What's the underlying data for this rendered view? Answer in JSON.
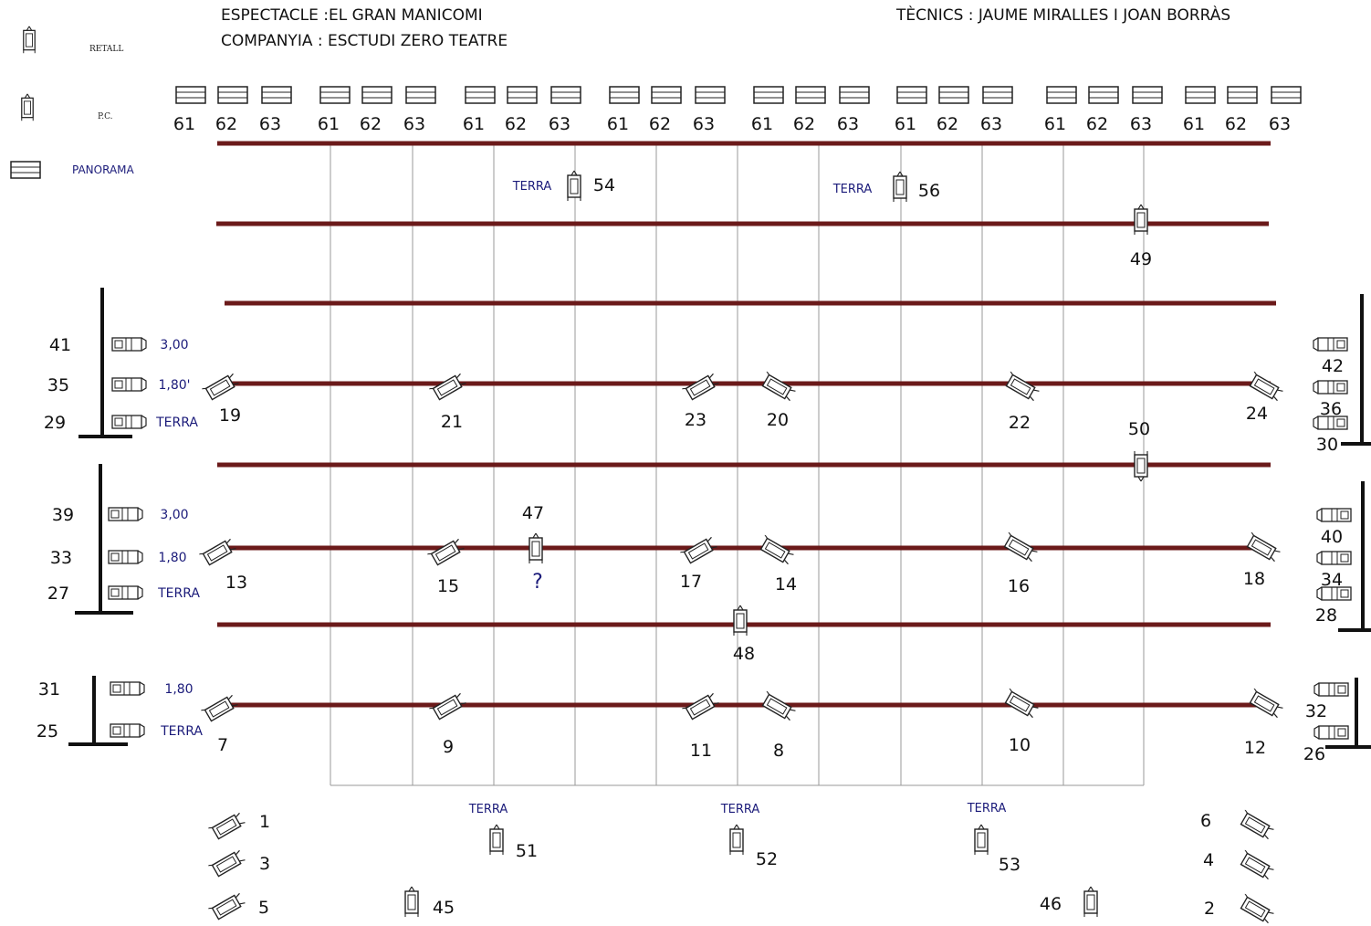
{
  "header": {
    "espectacle": "ESPECTACLE :EL GRAN MANICOMI",
    "companyia": "COMPANYIA : ESCTUDI ZERO TEATRE",
    "tecnics": "TÈCNICS : JAUME MIRALLES  I JOAN BORRÀS"
  },
  "legend": {
    "retall": "RETALL",
    "pc": "P.C.",
    "panorama": "PANORAMA"
  },
  "colors": {
    "bar": "#6b1a1a",
    "grid": "#9a9a9a",
    "ink": "#111111",
    "blue": "#1b1b7a"
  },
  "panorama_top": {
    "groups": 8,
    "labels": [
      "61",
      "62",
      "63"
    ]
  },
  "vertical_grid_count": 10,
  "bars": [
    {
      "id": "bar-1"
    },
    {
      "id": "bar-2"
    },
    {
      "id": "bar-3"
    },
    {
      "id": "bar-4"
    },
    {
      "id": "bar-5"
    },
    {
      "id": "bar-6"
    },
    {
      "id": "bar-7"
    }
  ],
  "fixtures": [
    {
      "n": "19"
    },
    {
      "n": "21"
    },
    {
      "n": "23"
    },
    {
      "n": "20"
    },
    {
      "n": "22"
    },
    {
      "n": "24"
    },
    {
      "n": "13"
    },
    {
      "n": "15"
    },
    {
      "n": "17"
    },
    {
      "n": "14"
    },
    {
      "n": "16"
    },
    {
      "n": "18"
    },
    {
      "n": "7"
    },
    {
      "n": "9"
    },
    {
      "n": "11"
    },
    {
      "n": "8"
    },
    {
      "n": "10"
    },
    {
      "n": "12"
    },
    {
      "n": "54",
      "note": "TERRA"
    },
    {
      "n": "56",
      "note": "TERRA"
    },
    {
      "n": "49"
    },
    {
      "n": "50"
    },
    {
      "n": "47",
      "note": "?"
    },
    {
      "n": "48"
    },
    {
      "n": "51",
      "note": "TERRA"
    },
    {
      "n": "52",
      "note": "TERRA"
    },
    {
      "n": "53",
      "note": "TERRA"
    },
    {
      "n": "45"
    },
    {
      "n": "46"
    },
    {
      "n": "1"
    },
    {
      "n": "3"
    },
    {
      "n": "5"
    },
    {
      "n": "6"
    },
    {
      "n": "4"
    },
    {
      "n": "2"
    }
  ],
  "side_towers": [
    {
      "side": "left",
      "rows": [
        {
          "n": "41",
          "h": "3,00"
        },
        {
          "n": "35",
          "h": "1,80'"
        },
        {
          "n": "29",
          "h": "TERRA"
        }
      ]
    },
    {
      "side": "left",
      "rows": [
        {
          "n": "39",
          "h": "3,00"
        },
        {
          "n": "33",
          "h": "1,80"
        },
        {
          "n": "27",
          "h": "TERRA"
        }
      ]
    },
    {
      "side": "left",
      "rows": [
        {
          "n": "31",
          "h": "1,80"
        },
        {
          "n": "25",
          "h": "TERRA"
        }
      ]
    },
    {
      "side": "right",
      "rows": [
        {
          "n": "42"
        },
        {
          "n": "36"
        },
        {
          "n": "30"
        }
      ]
    },
    {
      "side": "right",
      "rows": [
        {
          "n": "40"
        },
        {
          "n": "34"
        },
        {
          "n": "28"
        }
      ]
    },
    {
      "side": "right",
      "rows": [
        {
          "n": "32"
        },
        {
          "n": "26"
        }
      ]
    }
  ]
}
